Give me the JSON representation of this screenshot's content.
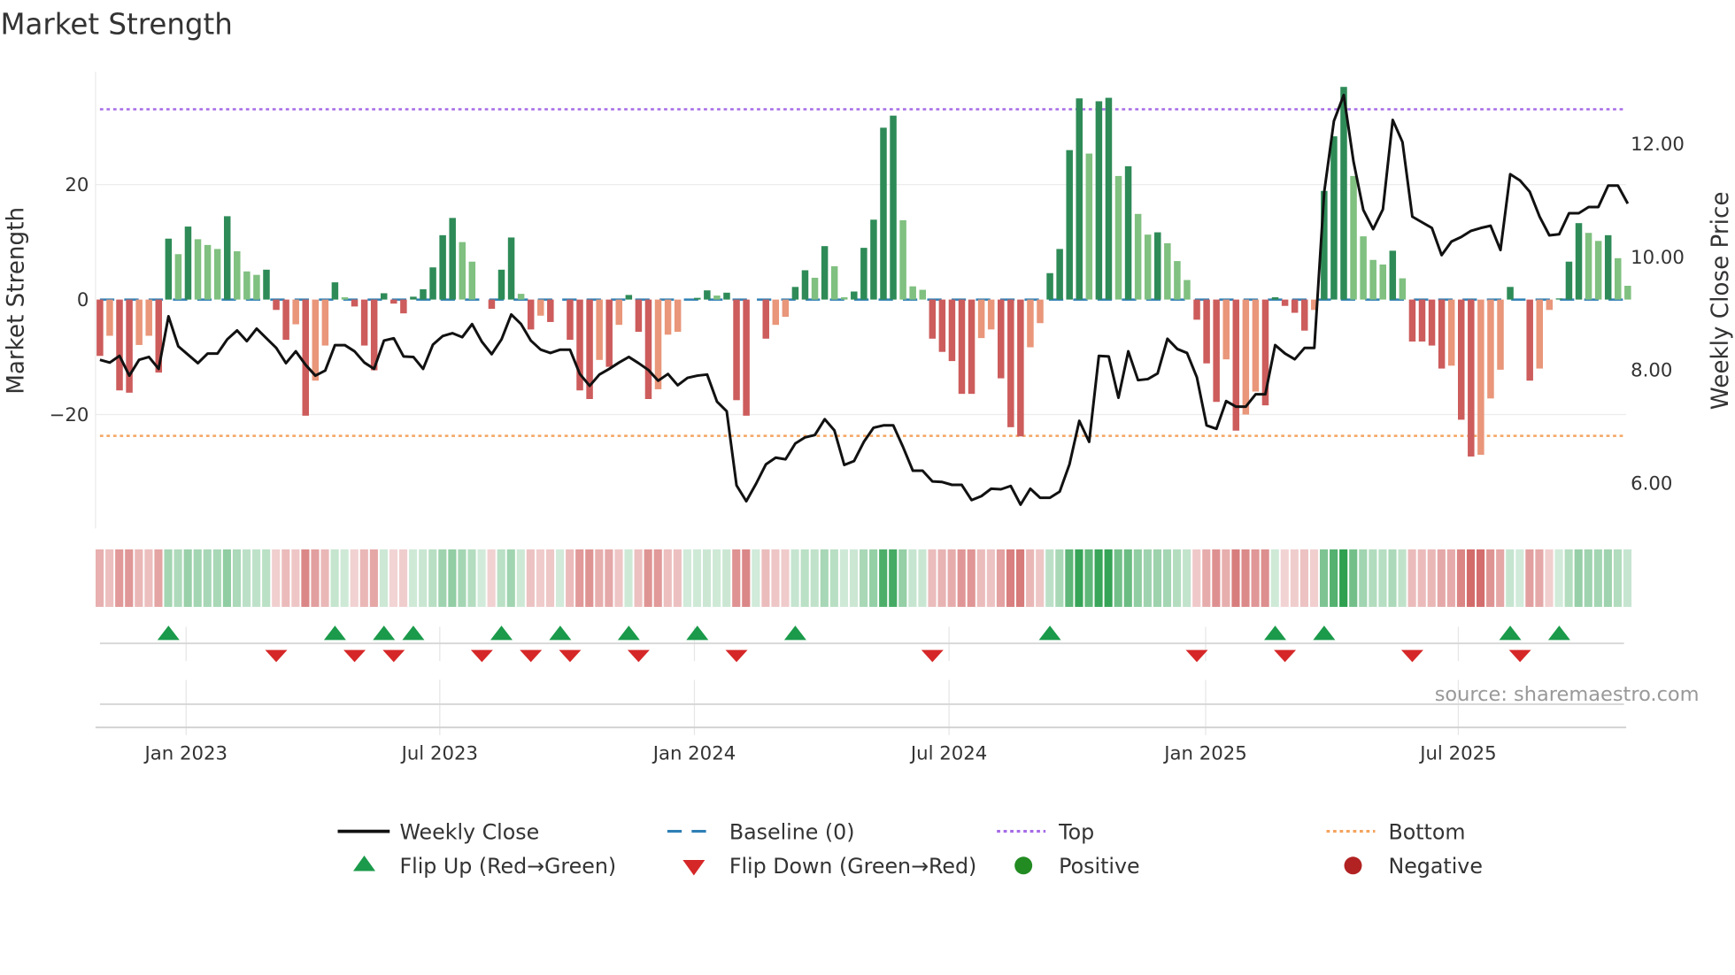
{
  "chart_data": {
    "type": "bar",
    "title": "Market Strength",
    "ylabel": "Market Strength",
    "ylabel_right": "Weekly Close Price",
    "ylim": [
      -40,
      40
    ],
    "ylim_right": [
      5.2,
      13.3
    ],
    "grid": true,
    "source": "source: sharemaestro.com",
    "frequency": "weekly",
    "y_ticks": [
      {
        "value": 20,
        "label": "20"
      },
      {
        "value": 0,
        "label": "0"
      },
      {
        "value": -20,
        "label": "−20"
      }
    ],
    "y_right_ticks": [
      {
        "value": 12,
        "label": "12.00"
      },
      {
        "value": 10,
        "label": "10.00"
      },
      {
        "value": 8,
        "label": "8.00"
      },
      {
        "value": 6,
        "label": "6.00"
      }
    ],
    "x_ticks": [
      {
        "week_index": 8.8,
        "label": "Jan 2023"
      },
      {
        "week_index": 34.7,
        "label": "Jul 2023"
      },
      {
        "week_index": 60.7,
        "label": "Jan 2024"
      },
      {
        "week_index": 86.7,
        "label": "Jul 2024"
      },
      {
        "week_index": 112.9,
        "label": "Jan 2025"
      },
      {
        "week_index": 138.7,
        "label": "Jul 2025"
      }
    ],
    "top_level": 33.1,
    "bottom_level": -23.7,
    "strength": [
      -9.8,
      -6.3,
      -15.8,
      -16.2,
      -7.9,
      -6.3,
      -12.7,
      10.6,
      7.9,
      12.7,
      10.5,
      9.5,
      8.8,
      14.5,
      8.4,
      4.9,
      4.3,
      5.2,
      -1.8,
      -7.0,
      -4.3,
      -20.2,
      -14.1,
      -8.0,
      3.0,
      0.4,
      -1.2,
      -8.0,
      -12.3,
      1.1,
      -0.7,
      -2.4,
      0.5,
      1.8,
      5.6,
      11.2,
      14.2,
      10.0,
      6.6,
      0,
      -1.6,
      5.2,
      10.8,
      1.0,
      -5.2,
      -2.8,
      -3.9,
      0,
      -7.0,
      -15.8,
      -17.3,
      -10.5,
      -11.7,
      -4.4,
      0.8,
      -5.6,
      -17.3,
      -15.6,
      -6.1,
      -5.6,
      0,
      0.3,
      1.6,
      0.7,
      1.2,
      -17.5,
      -20.2,
      0,
      -6.8,
      -4.4,
      -3.0,
      2.2,
      5.1,
      3.8,
      9.3,
      5.8,
      0.4,
      1.4,
      9.0,
      13.9,
      29.9,
      32.0,
      13.8,
      2.3,
      1.7,
      -6.8,
      -9.1,
      -10.7,
      -16.4,
      -16.4,
      -6.7,
      -5.2,
      -13.7,
      -22.2,
      -23.8,
      -8.3,
      -4.1,
      4.6,
      8.8,
      26.0,
      35.0,
      25.4,
      34.5,
      35.1,
      21.5,
      23.2,
      14.9,
      11.3,
      11.7,
      9.8,
      6.7,
      3.4,
      -3.5,
      -11.1,
      -17.8,
      -10.4,
      -22.8,
      -20.0,
      -16.0,
      -18.4,
      0.4,
      -1.1,
      -2.3,
      -5.4,
      -1.8,
      18.9,
      28.4,
      37.0,
      21.5,
      11.0,
      6.9,
      6.1,
      8.5,
      3.7,
      -7.3,
      -7.3,
      -8.0,
      -12.0,
      -11.5,
      -20.9,
      -27.3,
      -27.0,
      -17.2,
      -12.2,
      2.2,
      0,
      -14.1,
      -12.0,
      -1.8,
      0.2,
      6.6,
      13.3,
      11.6,
      10.2,
      11.2,
      7.2,
      2.4
    ],
    "weekly_close": [
      8.18,
      8.13,
      8.25,
      7.9,
      8.18,
      8.23,
      8.02,
      8.95,
      8.42,
      8.27,
      8.12,
      8.29,
      8.29,
      8.54,
      8.7,
      8.51,
      8.73,
      8.56,
      8.39,
      8.12,
      8.33,
      8.09,
      7.9,
      7.99,
      8.44,
      8.44,
      8.33,
      8.13,
      8.02,
      8.52,
      8.56,
      8.24,
      8.23,
      8.02,
      8.45,
      8.6,
      8.65,
      8.58,
      8.81,
      8.5,
      8.28,
      8.54,
      8.98,
      8.81,
      8.52,
      8.36,
      8.3,
      8.36,
      8.36,
      7.93,
      7.72,
      7.92,
      8.02,
      8.13,
      8.23,
      8.12,
      8.0,
      7.81,
      7.93,
      7.73,
      7.86,
      7.9,
      7.92,
      7.44,
      7.27,
      5.96,
      5.68,
      5.99,
      6.33,
      6.45,
      6.42,
      6.7,
      6.81,
      6.85,
      7.13,
      6.93,
      6.32,
      6.39,
      6.73,
      6.98,
      7.02,
      7.02,
      6.64,
      6.22,
      6.22,
      6.03,
      6.02,
      5.97,
      5.97,
      5.7,
      5.77,
      5.9,
      5.89,
      5.95,
      5.62,
      5.9,
      5.74,
      5.74,
      5.85,
      6.33,
      7.1,
      6.73,
      8.25,
      8.24,
      7.51,
      8.33,
      7.82,
      7.84,
      7.94,
      8.55,
      8.37,
      8.3,
      7.87,
      7.02,
      6.96,
      7.45,
      7.35,
      7.35,
      7.57,
      7.57,
      8.44,
      8.29,
      8.19,
      8.39,
      8.39,
      11.14,
      12.4,
      12.86,
      11.69,
      10.83,
      10.49,
      10.84,
      12.42,
      12.03,
      10.71,
      10.61,
      10.51,
      10.03,
      10.27,
      10.35,
      10.46,
      10.51,
      10.55,
      10.12,
      11.46,
      11.35,
      11.15,
      10.71,
      10.38,
      10.4,
      10.77,
      10.77,
      10.88,
      10.88,
      11.26,
      11.26,
      10.94
    ],
    "flip_up_weeks": [
      7,
      24,
      29,
      32,
      41,
      47,
      54,
      61,
      71,
      97,
      120,
      125,
      144,
      149
    ],
    "flip_down_weeks": [
      18,
      26,
      30,
      39,
      44,
      48,
      55,
      65,
      85,
      112,
      121,
      134,
      145
    ],
    "legend": {
      "weekly_close": "Weekly Close",
      "baseline": "Baseline (0)",
      "top": "Top",
      "bottom": "Bottom",
      "flip_up": "Flip Up (Red→Green)",
      "flip_down": "Flip Down (Green→Red)",
      "positive": "Positive",
      "negative": "Negative"
    },
    "colors": {
      "pos_strong": "#2e8b57",
      "pos_weak": "#80c080",
      "neg_strong": "#cd5c5c",
      "neg_weak": "#e9967a",
      "line": "#111111",
      "baseline": "#2f7fb5",
      "top": "#a66be6",
      "bottom": "#f4a460",
      "flip_up": "#1a9a4a",
      "flip_down": "#d62728",
      "positive": "#228b22",
      "negative": "#b22222"
    }
  }
}
